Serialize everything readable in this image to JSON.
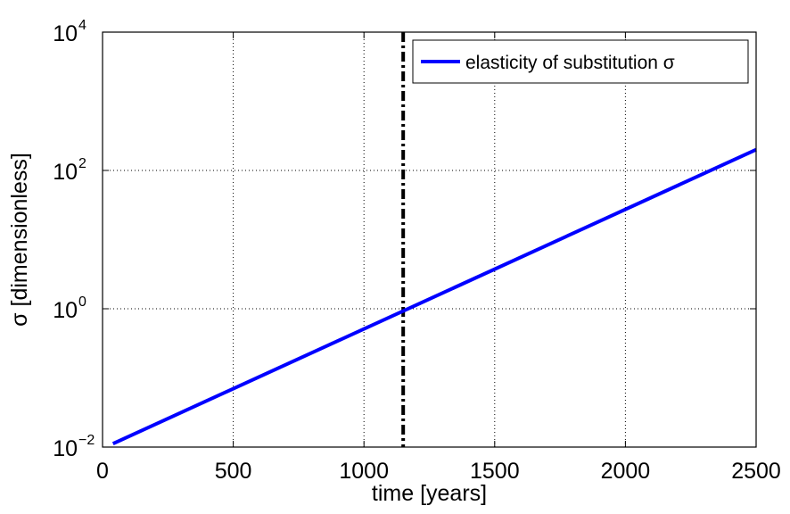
{
  "chart_data": {
    "type": "line",
    "title": "",
    "xlabel": "time [years]",
    "ylabel": "σ [dimensionless]",
    "xlim": [
      0,
      2500
    ],
    "ylim": [
      0.01,
      10000
    ],
    "yscale": "log",
    "grid": true,
    "legend_position": "top-right",
    "x_ticks": [
      {
        "value": 0,
        "label": "0"
      },
      {
        "value": 500,
        "label": "500"
      },
      {
        "value": 1000,
        "label": "1000"
      },
      {
        "value": 1500,
        "label": "1500"
      },
      {
        "value": 2000,
        "label": "2000"
      },
      {
        "value": 2500,
        "label": "2500"
      }
    ],
    "y_ticks": [
      {
        "value": 0.01,
        "base": "10",
        "exp": "−2"
      },
      {
        "value": 1,
        "base": "10",
        "exp": "0"
      },
      {
        "value": 100,
        "base": "10",
        "exp": "2"
      },
      {
        "value": 10000,
        "base": "10",
        "exp": "4"
      }
    ],
    "series": [
      {
        "name": "elasticity of substitution σ",
        "color": "#0000ff",
        "style": "solid",
        "x": [
          40,
          2500
        ],
        "y": [
          0.0112,
          200
        ]
      }
    ],
    "reference_lines": [
      {
        "orientation": "vertical",
        "x": 1150,
        "color": "#000000",
        "style": "dash-dot"
      }
    ]
  }
}
